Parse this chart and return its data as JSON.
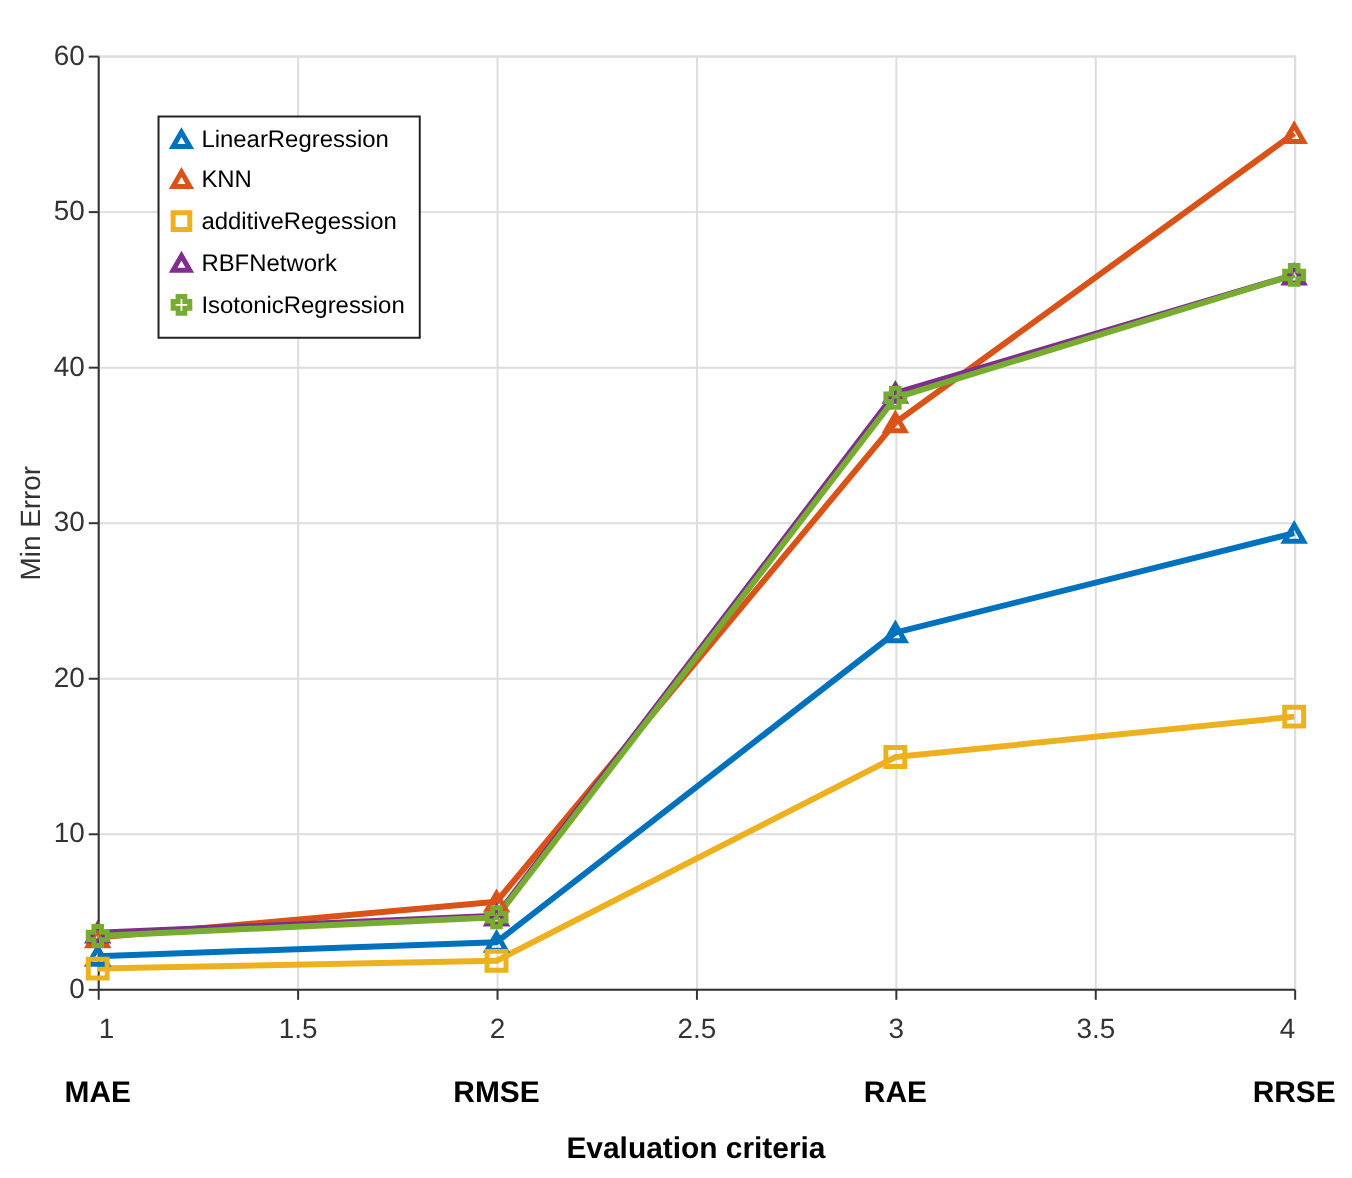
{
  "chart_data": {
    "type": "line",
    "xlabel": "Evaluation criteria",
    "ylabel": "Min Error",
    "x": [
      1,
      2,
      3,
      4
    ],
    "series": [
      {
        "name": "LinearRegression",
        "color": "#0072bd",
        "marker": "triangle",
        "values": [
          2.1,
          3.0,
          22.9,
          29.3
        ]
      },
      {
        "name": "KNN",
        "color": "#d95319",
        "marker": "triangle",
        "values": [
          3.3,
          5.6,
          36.4,
          55.0
        ]
      },
      {
        "name": "additiveRegession",
        "color": "#edb120",
        "marker": "square",
        "values": [
          1.3,
          1.8,
          14.9,
          17.5
        ]
      },
      {
        "name": "RBFNetwork",
        "color": "#7e2f8e",
        "marker": "triangle",
        "values": [
          3.6,
          4.7,
          38.3,
          45.9
        ]
      },
      {
        "name": "IsotonicRegression",
        "color": "#77ac30",
        "marker": "cross",
        "values": [
          3.4,
          4.6,
          38.0,
          45.9
        ]
      }
    ],
    "xlim": [
      1,
      4
    ],
    "xticks": [
      1,
      1.5,
      2,
      2.5,
      3,
      3.5,
      4
    ],
    "ylim": [
      0,
      60
    ],
    "yticks": [
      0,
      10,
      20,
      30,
      40,
      50,
      60
    ],
    "annotations": [
      "MAE",
      "RMSE",
      "RAE",
      "RRSE"
    ],
    "grid": true,
    "legend": "top left",
    "line_style": "solid"
  }
}
